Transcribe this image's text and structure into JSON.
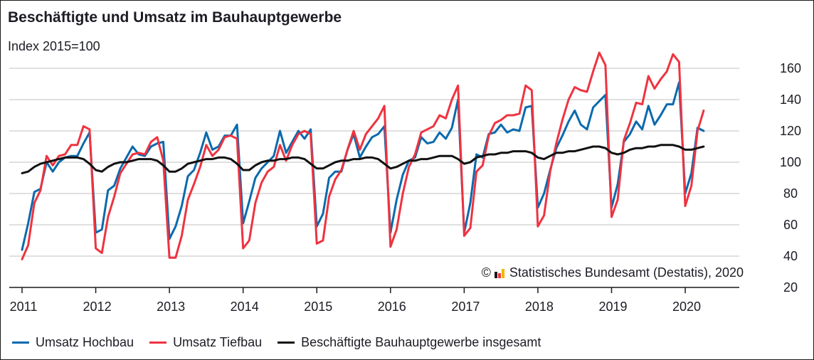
{
  "chart_data": {
    "type": "line",
    "title": "Beschäftigte und Umsatz im Bauhauptgewerbe",
    "subtitle": "Index 2015=100",
    "xlabel": "",
    "ylabel": "",
    "ylim": [
      20,
      170
    ],
    "y_ticks": [
      "20",
      "40",
      "60",
      "80",
      "100",
      "120",
      "140",
      "160"
    ],
    "y_tick_values": [
      20,
      40,
      60,
      80,
      100,
      120,
      140,
      160
    ],
    "x_ticks": [
      "2011",
      "2012",
      "2013",
      "2014",
      "2015",
      "2016",
      "2017",
      "2018",
      "2019",
      "2020"
    ],
    "x_start": "2011-01",
    "frequency": "monthly",
    "grid": true,
    "legend_position": "bottom",
    "credit": "Statistisches Bundesamt (Destatis), 2020",
    "credit_symbol": "©",
    "series": [
      {
        "name": "Umsatz Hochbau",
        "color": "#0a6aad",
        "values": [
          44,
          61,
          81,
          83,
          100,
          94,
          100,
          103,
          104,
          104,
          112,
          119,
          55,
          57,
          82,
          85,
          96,
          103,
          110,
          105,
          104,
          110,
          112,
          113,
          51,
          59,
          72,
          91,
          95,
          106,
          119,
          108,
          110,
          117,
          117,
          124,
          61,
          75,
          90,
          96,
          100,
          104,
          120,
          106,
          113,
          120,
          115,
          121,
          59,
          67,
          90,
          94,
          94,
          108,
          118,
          103,
          110,
          116,
          118,
          123,
          55,
          76,
          92,
          101,
          103,
          116,
          112,
          113,
          119,
          115,
          122,
          140,
          55,
          74,
          105,
          103,
          118,
          119,
          124,
          119,
          121,
          120,
          135,
          136,
          71,
          80,
          95,
          109,
          117,
          126,
          133,
          124,
          121,
          135,
          139,
          143,
          71,
          86,
          113,
          118,
          126,
          121,
          136,
          124,
          130,
          137,
          137,
          151,
          80,
          93,
          122,
          120
        ]
      },
      {
        "name": "Umsatz Tiefbau",
        "color": "#ef3340",
        "values": [
          38,
          47,
          74,
          82,
          104,
          98,
          104,
          105,
          111,
          111,
          123,
          121,
          45,
          42,
          65,
          78,
          93,
          99,
          105,
          106,
          105,
          113,
          116,
          101,
          39,
          39,
          53,
          76,
          86,
          97,
          111,
          104,
          108,
          116,
          117,
          115,
          45,
          50,
          74,
          87,
          94,
          97,
          111,
          101,
          111,
          118,
          120,
          118,
          48,
          50,
          78,
          89,
          95,
          108,
          120,
          108,
          118,
          123,
          128,
          136,
          46,
          57,
          80,
          97,
          105,
          119,
          121,
          123,
          130,
          128,
          140,
          149,
          53,
          58,
          94,
          98,
          117,
          125,
          127,
          130,
          130,
          131,
          149,
          146,
          59,
          66,
          94,
          112,
          127,
          140,
          148,
          146,
          145,
          158,
          170,
          162,
          65,
          76,
          114,
          125,
          138,
          137,
          155,
          147,
          153,
          158,
          169,
          164,
          72,
          85,
          120,
          133
        ]
      },
      {
        "name": "Beschäftigte Bauhauptgewerbe insgesamt",
        "color": "#111111",
        "values": [
          93,
          94,
          97,
          99,
          100,
          101,
          102,
          103,
          103,
          103,
          102,
          99,
          95,
          94,
          97,
          99,
          100,
          100,
          101,
          102,
          102,
          102,
          101,
          98,
          94,
          94,
          96,
          99,
          100,
          101,
          102,
          102,
          103,
          103,
          102,
          99,
          95,
          95,
          98,
          100,
          101,
          101,
          102,
          102,
          103,
          103,
          102,
          99,
          96,
          96,
          98,
          100,
          101,
          101,
          102,
          102,
          103,
          103,
          102,
          99,
          96,
          97,
          99,
          101,
          101,
          102,
          102,
          103,
          104,
          104,
          104,
          102,
          99,
          100,
          103,
          104,
          105,
          105,
          106,
          106,
          107,
          107,
          107,
          106,
          103,
          102,
          104,
          106,
          106,
          107,
          107,
          108,
          109,
          110,
          110,
          109,
          106,
          105,
          106,
          108,
          109,
          109,
          110,
          110,
          111,
          111,
          111,
          110,
          108,
          108,
          109,
          110
        ]
      }
    ]
  },
  "logo_colors": [
    "#1a1a1a",
    "#ef3340",
    "#f2b800"
  ]
}
